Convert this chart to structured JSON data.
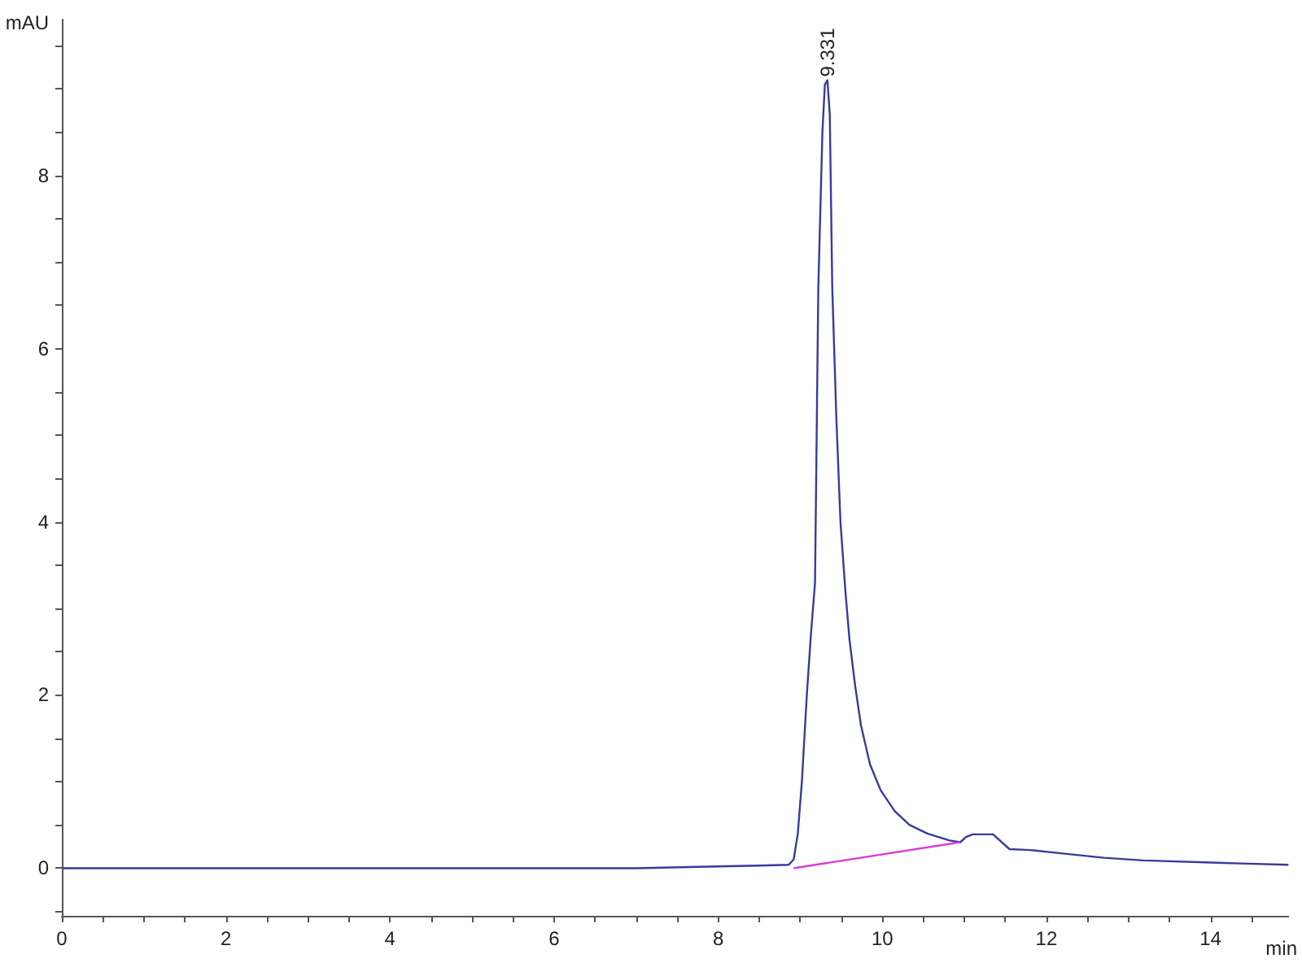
{
  "chart_data": {
    "type": "line",
    "xlabel": "min",
    "ylabel": "mAU",
    "xlim": [
      0,
      14.95
    ],
    "ylim": [
      -0.55,
      9.8
    ],
    "xticks": [
      0,
      {
        "value": 0.5,
        "label": null
      },
      {
        "value": 1,
        "label": null
      },
      {
        "value": 1.5,
        "label": null
      },
      2,
      {
        "value": 2.5,
        "label": null
      },
      {
        "value": 3,
        "label": null
      },
      {
        "value": 3.5,
        "label": null
      },
      4,
      {
        "value": 4.5,
        "label": null
      },
      {
        "value": 5,
        "label": null
      },
      {
        "value": 5.5,
        "label": null
      },
      6,
      {
        "value": 6.5,
        "label": null
      },
      {
        "value": 7,
        "label": null
      },
      {
        "value": 7.5,
        "label": null
      },
      8,
      {
        "value": 8.5,
        "label": null
      },
      {
        "value": 9,
        "label": null
      },
      {
        "value": 9.5,
        "label": null
      },
      10,
      {
        "value": 10.5,
        "label": null
      },
      {
        "value": 11,
        "label": null
      },
      {
        "value": 11.5,
        "label": null
      },
      12,
      {
        "value": 12.5,
        "label": null
      },
      {
        "value": 13,
        "label": null
      },
      {
        "value": 13.5,
        "label": null
      },
      14,
      {
        "value": 14.5,
        "label": null
      }
    ],
    "yticks": [
      {
        "value": -0.5,
        "label": null
      },
      0,
      {
        "value": 0.5,
        "label": null
      },
      {
        "value": 1,
        "label": null
      },
      {
        "value": 1.5,
        "label": null
      },
      2,
      {
        "value": 2.5,
        "label": null
      },
      {
        "value": 3,
        "label": null
      },
      {
        "value": 3.5,
        "label": null
      },
      4,
      {
        "value": 4.5,
        "label": null
      },
      {
        "value": 5,
        "label": null
      },
      {
        "value": 5.5,
        "label": null
      },
      6,
      {
        "value": 6.5,
        "label": null
      },
      {
        "value": 7,
        "label": null
      },
      {
        "value": 7.5,
        "label": null
      },
      8,
      {
        "value": 8.5,
        "label": null
      },
      {
        "value": 9,
        "label": null
      },
      {
        "value": 9.5,
        "label": null
      }
    ],
    "grid": false,
    "marker": "none",
    "line_style": "solid",
    "series": [
      {
        "color": "#3a3a9a",
        "x": [
          0,
          1,
          2,
          3,
          4,
          5,
          6,
          7,
          8,
          8.5,
          8.86,
          8.92,
          8.97,
          9.02,
          9.08,
          9.13,
          9.18,
          9.22,
          9.27,
          9.3,
          9.331,
          9.36,
          9.39,
          9.44,
          9.49,
          9.55,
          9.6,
          9.67,
          9.74,
          9.85,
          9.98,
          10.15,
          10.33,
          10.55,
          10.82,
          10.95,
          11.02,
          11.1,
          11.35,
          11.55,
          11.8,
          12.2,
          12.7,
          13.18,
          14.16,
          14.95
        ],
        "values": [
          0,
          0,
          0,
          0,
          0,
          0,
          0,
          0,
          0.02,
          0.03,
          0.04,
          0.1,
          0.4,
          1.0,
          2.0,
          2.7,
          3.3,
          6.7,
          8.5,
          9.05,
          9.1,
          8.7,
          6.7,
          5.2,
          4.0,
          3.2,
          2.64,
          2.1,
          1.65,
          1.2,
          0.9,
          0.66,
          0.5,
          0.4,
          0.32,
          0.3,
          0.36,
          0.39,
          0.39,
          0.22,
          0.21,
          0.17,
          0.12,
          0.09,
          0.06,
          0.04
        ]
      },
      {
        "color": "#d63cd6",
        "x": [
          8.92,
          10.95
        ],
        "values": [
          0,
          0.3
        ]
      }
    ],
    "annotations": [
      {
        "text": "9.331",
        "x": 9.331,
        "y": 9.1
      }
    ]
  }
}
